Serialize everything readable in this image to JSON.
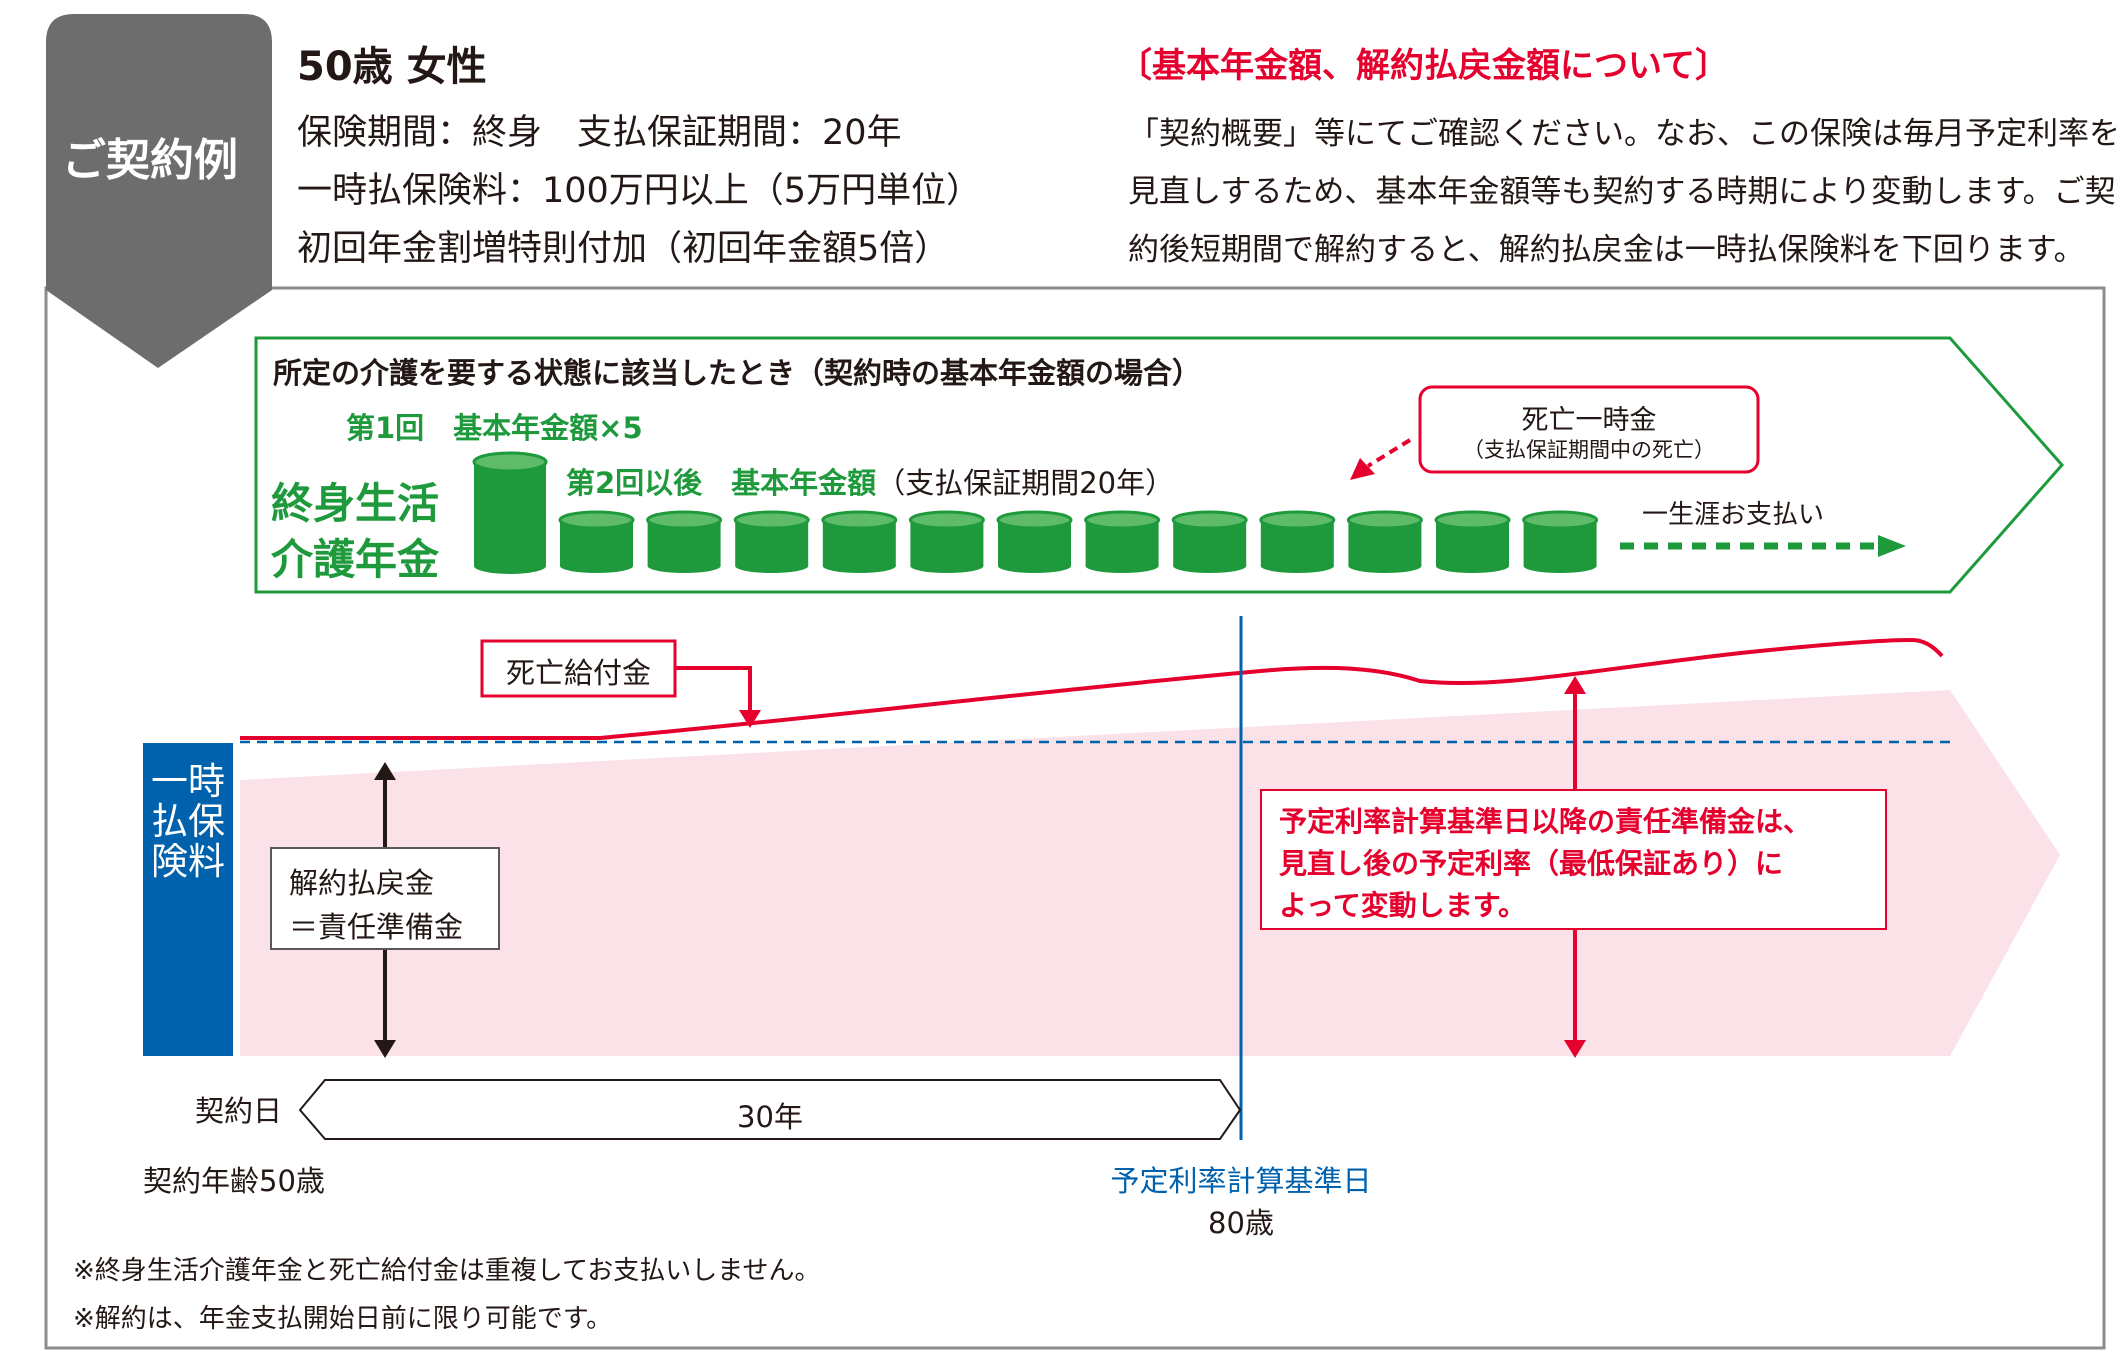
{
  "colors": {
    "accent_red": "#e5002d",
    "green": "#1e9a3c",
    "blue": "#0061ad",
    "pink_area": "#fbe2e8",
    "gray_tab": "#6d6d6d",
    "text": "#231815"
  },
  "header": {
    "tab_label": "ご契約例",
    "profile_title": "50歳 女性",
    "lines": [
      "保険期間：終身　支払保証期間：20年",
      "一時払保険料：100万円以上（5万円単位）",
      "初回年金割増特則付加（初回年金額5倍）"
    ]
  },
  "notice": {
    "title": "〔基本年金額、解約払戻金額について〕",
    "lines": [
      "「契約概要」等にてご確認ください。なお、この保険は毎月予定利率を",
      "見直しするため、基本年金額等も契約する時期により変動します。ご契",
      "約後短期間で解約すると、解約払戻金は一時払保険料を下回ります。"
    ]
  },
  "annuity_box": {
    "title": "所定の介護を要する状態に該当したとき（契約時の基本年金額の場合）",
    "first_payment": "第1回　基本年金額×5",
    "product_name_line1": "終身生活",
    "product_name_line2": "介護年金",
    "second_payment_green": "第2回以後　基本年金額",
    "second_payment_dark": "（支払保証期間20年）",
    "death_lump_title": "死亡一時金",
    "death_lump_sub": "（支払保証期間中の死亡）",
    "lifetime_label": "一生涯お支払い",
    "coin_count_after_first": 12
  },
  "diagram": {
    "death_benefit_label": "死亡給付金",
    "premium_label": "一時払保険料",
    "surrender_label_line1": "解約払戻金",
    "surrender_label_line2": "＝責任準備金",
    "rate_note_lines": [
      "予定利率計算基準日以降の責任準備金は、",
      "見直し後の予定利率（最低保証あり）に",
      "よって変動します。"
    ]
  },
  "timeline": {
    "start_label": "契約日",
    "duration_label": "30年",
    "start_age": "契約年齢50歳",
    "base_date_label": "予定利率計算基準日",
    "base_date_age": "80歳"
  },
  "footnotes": [
    "※終身生活介護年金と死亡給付金は重複してお支払いしません。",
    "※解約は、年金支払開始日前に限り可能です。"
  ]
}
